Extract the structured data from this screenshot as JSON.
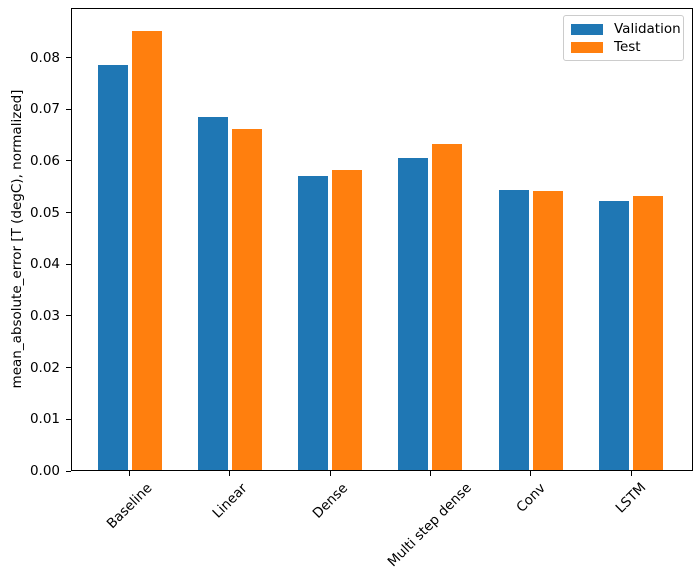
{
  "chart_data": {
    "type": "bar",
    "title": "",
    "xlabel": "",
    "ylabel": "mean_absolute_error [T (degC), normalized]",
    "categories": [
      "Baseline",
      "Linear",
      "Dense",
      "Multi step dense",
      "Conv",
      "LSTM"
    ],
    "series": [
      {
        "name": "Validation",
        "color": "#1f77b4",
        "values": [
          0.0785,
          0.0685,
          0.0571,
          0.0605,
          0.0544,
          0.0522
        ]
      },
      {
        "name": "Test",
        "color": "#ff7f0e",
        "values": [
          0.0852,
          0.0662,
          0.0582,
          0.0633,
          0.0542,
          0.0532
        ]
      }
    ],
    "ylim": [
      0,
      0.0896
    ],
    "yticks": [
      0.0,
      0.01,
      0.02,
      0.03,
      0.04,
      0.05,
      0.06,
      0.07,
      0.08
    ],
    "ytick_labels": [
      "0.00",
      "0.01",
      "0.02",
      "0.03",
      "0.04",
      "0.05",
      "0.06",
      "0.07",
      "0.08"
    ],
    "x_rotation_deg": 45,
    "grid": false,
    "legend": {
      "location": "upper right",
      "entries": [
        "Validation",
        "Test"
      ]
    },
    "bar_group": {
      "bar_width_units": 0.3,
      "offset_units": 0.17
    }
  }
}
